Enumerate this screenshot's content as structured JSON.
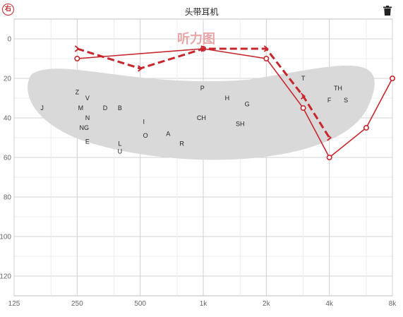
{
  "header": {
    "ear_label": "右",
    "title": "头带耳机",
    "delete_icon": "trash-icon"
  },
  "watermark": "听力图",
  "colors": {
    "accent": "#c8262d",
    "banana": "#d9d9d9",
    "grid": "#e3e3e3"
  },
  "chart_data": {
    "type": "line",
    "title": "",
    "xlabel": "",
    "ylabel": "",
    "x_scale": "log2",
    "x_ticks": [
      {
        "freq": 125,
        "label": "125"
      },
      {
        "freq": 250,
        "label": "250"
      },
      {
        "freq": 500,
        "label": "500"
      },
      {
        "freq": 1000,
        "label": "1k"
      },
      {
        "freq": 2000,
        "label": "2k"
      },
      {
        "freq": 4000,
        "label": "4k"
      },
      {
        "freq": 8000,
        "label": "8k"
      }
    ],
    "y_ticks": [
      0,
      20,
      40,
      60,
      80,
      100,
      120
    ],
    "ylim": [
      -10,
      130
    ],
    "y_inverted": true,
    "grid": true,
    "series": [
      {
        "kind": "air-conduction",
        "style": "solid",
        "marker": "circle",
        "points": [
          {
            "freq": 250,
            "db": 10
          },
          {
            "freq": 1000,
            "db": 5
          },
          {
            "freq": 2000,
            "db": 10
          },
          {
            "freq": 3000,
            "db": 35
          },
          {
            "freq": 4000,
            "db": 60
          },
          {
            "freq": 6000,
            "db": 45
          },
          {
            "freq": 8000,
            "db": 20
          }
        ]
      },
      {
        "kind": "bone-conduction",
        "style": "dashed",
        "marker": "bracket",
        "points": [
          {
            "freq": 250,
            "db": 5
          },
          {
            "freq": 500,
            "db": 15
          },
          {
            "freq": 1000,
            "db": 5
          },
          {
            "freq": 2000,
            "db": 5
          },
          {
            "freq": 3000,
            "db": 29
          },
          {
            "freq": 4000,
            "db": 50
          }
        ]
      }
    ],
    "speech_banana": {
      "phonemes": [
        {
          "text": "Z",
          "freq": 250,
          "db": 27
        },
        {
          "text": "V",
          "freq": 280,
          "db": 30
        },
        {
          "text": "J",
          "freq": 170,
          "db": 35
        },
        {
          "text": "M",
          "freq": 260,
          "db": 35
        },
        {
          "text": "D",
          "freq": 340,
          "db": 35
        },
        {
          "text": "B",
          "freq": 400,
          "db": 35
        },
        {
          "text": "N",
          "freq": 280,
          "db": 40
        },
        {
          "text": "NG",
          "freq": 270,
          "db": 45
        },
        {
          "text": "E",
          "freq": 280,
          "db": 52
        },
        {
          "text": "L",
          "freq": 400,
          "db": 53
        },
        {
          "text": "U",
          "freq": 400,
          "db": 57
        },
        {
          "text": "I",
          "freq": 520,
          "db": 42
        },
        {
          "text": "O",
          "freq": 530,
          "db": 49
        },
        {
          "text": "A",
          "freq": 680,
          "db": 48
        },
        {
          "text": "R",
          "freq": 790,
          "db": 53
        },
        {
          "text": "P",
          "freq": 990,
          "db": 25
        },
        {
          "text": "H",
          "freq": 1300,
          "db": 30
        },
        {
          "text": "G",
          "freq": 1620,
          "db": 33
        },
        {
          "text": "CH",
          "freq": 980,
          "db": 40
        },
        {
          "text": "SH",
          "freq": 1500,
          "db": 43
        },
        {
          "text": "T",
          "freq": 3000,
          "db": 20
        },
        {
          "text": "TH",
          "freq": 4400,
          "db": 25
        },
        {
          "text": "F",
          "freq": 4000,
          "db": 31
        },
        {
          "text": "S",
          "freq": 4800,
          "db": 31
        }
      ]
    }
  }
}
